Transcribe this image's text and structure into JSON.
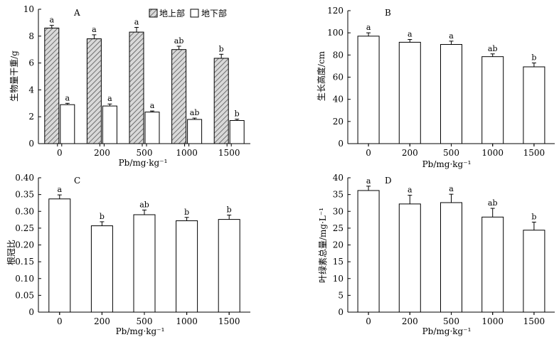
{
  "panels": [
    {
      "id": "A",
      "letter": "A",
      "chart_data": {
        "type": "bar",
        "categories": [
          "0",
          "200",
          "500",
          "1000",
          "1500"
        ],
        "series": [
          {
            "name": "地上部",
            "style": "hatched",
            "values": [
              8.6,
              7.8,
              8.3,
              7.0,
              6.35
            ],
            "errors": [
              0.2,
              0.3,
              0.35,
              0.25,
              0.3
            ],
            "labels": [
              "a",
              "a",
              "a",
              "ab",
              "b"
            ]
          },
          {
            "name": "地下部",
            "style": "open",
            "values": [
              2.9,
              2.8,
              2.35,
              1.8,
              1.72
            ],
            "errors": [
              0.1,
              0.15,
              0.08,
              0.1,
              0.1
            ],
            "labels": [
              "a",
              "a",
              "a",
              "ab",
              "b"
            ]
          }
        ],
        "ylim": [
          0,
          10
        ],
        "yticks": [
          "0",
          "2",
          "4",
          "6",
          "8",
          "10"
        ],
        "ylabel": "生物量干重/g",
        "xlabel": "Pb/mg·kg⁻¹",
        "legend": "top-right"
      }
    },
    {
      "id": "B",
      "letter": "B",
      "chart_data": {
        "type": "bar",
        "categories": [
          "0",
          "200",
          "500",
          "1000",
          "1500"
        ],
        "series": [
          {
            "values": [
              97,
              91.5,
              89.5,
              78.5,
              69.3
            ],
            "errors": [
              3,
              2.5,
              3,
              2.5,
              3.5
            ],
            "labels": [
              "a",
              "a",
              "a",
              "ab",
              "b"
            ]
          }
        ],
        "ylim": [
          0,
          120
        ],
        "yticks": [
          "0",
          "20",
          "40",
          "60",
          "80",
          "100",
          "120"
        ],
        "ylabel": "生长高度/cm",
        "xlabel": "Pb/mg·kg⁻¹"
      }
    },
    {
      "id": "C",
      "letter": "C",
      "chart_data": {
        "type": "bar",
        "categories": [
          "0",
          "200",
          "500",
          "1000",
          "1500"
        ],
        "series": [
          {
            "values": [
              0.337,
              0.257,
              0.29,
              0.272,
              0.276
            ],
            "errors": [
              0.012,
              0.012,
              0.014,
              0.01,
              0.013
            ],
            "labels": [
              "a",
              "b",
              "ab",
              "b",
              "b"
            ]
          }
        ],
        "ylim": [
          0,
          0.4
        ],
        "yticks": [
          "0",
          "0.05",
          "0.10",
          "0.15",
          "0.20",
          "0.25",
          "0.30",
          "0.35",
          "0.40"
        ],
        "ylabel": "根冠比",
        "xlabel": "Pb/mg·kg⁻¹"
      }
    },
    {
      "id": "D",
      "letter": "D",
      "chart_data": {
        "type": "bar",
        "categories": [
          "0",
          "200",
          "500",
          "1000",
          "1500"
        ],
        "series": [
          {
            "values": [
              36.2,
              32.2,
              32.6,
              28.3,
              24.4
            ],
            "errors": [
              1.3,
              2.6,
              2.5,
              2.6,
              2.4
            ],
            "labels": [
              "a",
              "a",
              "a",
              "ab",
              "b"
            ]
          }
        ],
        "ylim": [
          0,
          40
        ],
        "yticks": [
          "0",
          "5",
          "10",
          "15",
          "20",
          "25",
          "30",
          "35",
          "40"
        ],
        "ylabel": "叶绿素总量/mg·L⁻¹",
        "xlabel": "Pb/mg·kg⁻¹"
      }
    }
  ]
}
